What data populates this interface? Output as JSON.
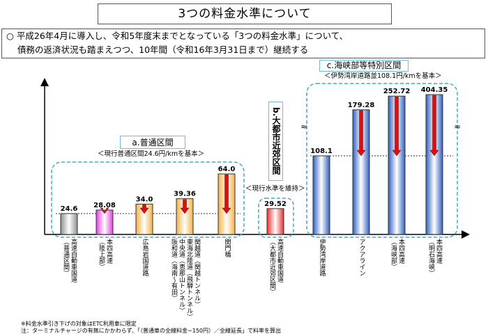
{
  "title": "3つの料金水準について",
  "info": {
    "bullet": "○",
    "line1": "平成26年4月に導入し、令和5年度末までとなっている「3つの料金水準」について、",
    "line2": "債務の返済状況も踏まえつつ、10年間（令和16年3月31日まで）継続する"
  },
  "groups": {
    "a": {
      "label": "a.普通区間",
      "sub": "＜現行普通区間24.6円/kmを基本＞"
    },
    "b": {
      "label": "b.大都市近郊区間",
      "sub": "＜現行水準を維持＞"
    },
    "c": {
      "label": "c.海峡部等特別区間",
      "sub": "＜伊勢湾岸道路並108.1円/kmを基本＞"
    }
  },
  "chart_data": {
    "type": "bar",
    "categories": [
      "高速自動車国道（普通区間）",
      "本四高速（陸上部）",
      "広島岩国道路",
      "関越道（関越トンネル）\n東海北陸道（飛騨トンネル）\n中央道（恵那山トンネル）\n阪和道（海南～有田）",
      "関門橋",
      "高速自動車国道（大都市近郊区間）",
      "伊勢湾岸道路",
      "アクアライン",
      "本四高速（海峡部）",
      "本四高速（明石海峡）"
    ],
    "cat_display": [
      "高速自動車国道\n（普通区間）",
      "本四高速\n（陸上部）",
      "広島岩国道路",
      "関越道（関越トンネル）\n東海北陸道（飛騨トンネル）\n中央道（恵那山トンネル）\n阪和道（海南～有田）",
      "関門橋",
      "高速自動車国道\n（大都市近郊区間）",
      "伊勢湾岸道路",
      "アクアライン",
      "本四高速\n（海峡部）",
      "本四高速\n（明石海峡）"
    ],
    "values": [
      24.6,
      28.08,
      34.0,
      39.36,
      64.0,
      29.52,
      108.1,
      179.28,
      252.72,
      404.35
    ],
    "value_labels": [
      "24.6",
      "28.08",
      "34.0",
      "39.36",
      "64.0",
      "29.52",
      "108.1",
      "179.28",
      "252.72",
      "404.35"
    ],
    "colors": [
      "#909090",
      "#e040e0",
      "#f5b040",
      "#f5b040",
      "#f5b040",
      "#e83030",
      "#3060c0",
      "#3060c0",
      "#3060c0",
      "#3060c0"
    ],
    "reduction_arrows": [
      false,
      true,
      true,
      true,
      true,
      false,
      false,
      true,
      true,
      true
    ],
    "y_axis": "broken",
    "reference_lines": [
      24.6,
      108.1
    ]
  },
  "footnotes": [
    "※料金水準引き下げの対象はETC利用車に限定",
    "注：ターミナルチャージの有無にかかわらず、「（普通車の全線料金−150円）／全線延長」で料率を算出"
  ]
}
